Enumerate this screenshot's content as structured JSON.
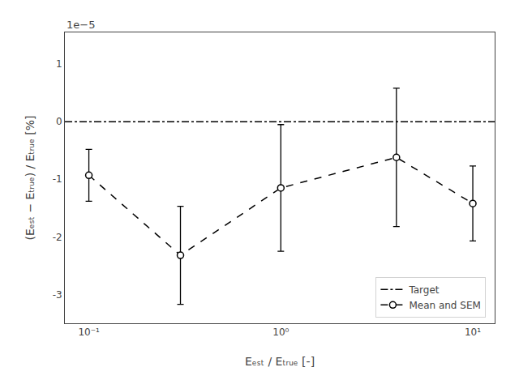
{
  "chart_data": {
    "type": "errorbar",
    "xlabel": "Eₑₛₜ / Eₜᵣᵤₑ [-]",
    "ylabel": "(Eₑₛₜ − Eₜᵣᵤₑ) / Eₜᵣᵤₑ [%]",
    "annotations": [
      "1e−5"
    ],
    "x": [
      0.1,
      0.3,
      1.0,
      4.0,
      10.0
    ],
    "series": [
      {
        "name": "Target",
        "type": "hline",
        "y": 0.0,
        "color": "black",
        "line_style": "dashdot"
      },
      {
        "name": "Mean and SEM",
        "type": "errorbar",
        "color": "black",
        "marker": "circle",
        "line_style": "dashed",
        "values": [
          -0.93,
          -2.32,
          -1.15,
          -0.62,
          -1.42
        ],
        "errors": [
          0.45,
          0.85,
          1.1,
          1.2,
          0.65
        ]
      }
    ],
    "log": "x",
    "xlim": [
      0.075,
      13.0
    ],
    "xticks": [
      {
        "value": 0.1,
        "label": "10⁻¹"
      },
      {
        "value": 1,
        "label": "10⁰"
      },
      {
        "value": 10,
        "label": "10¹"
      }
    ],
    "ylim": [
      -3.5,
      1.55
    ],
    "yticks": [
      -3,
      -2,
      -1,
      0,
      1
    ],
    "grid": false,
    "legend": "lower right"
  }
}
